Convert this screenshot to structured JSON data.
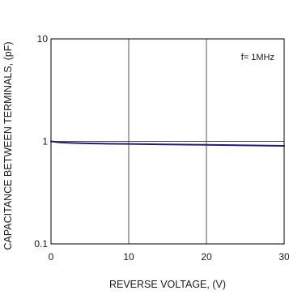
{
  "chart_data": {
    "type": "line",
    "title": "",
    "xlabel": "REVERSE VOLTAGE, (V)",
    "ylabel": "CAPACITANCE BETWEEN TERMINALS, (pF)",
    "xlim": [
      0,
      30
    ],
    "ylim": [
      0.1,
      10
    ],
    "y_scale": "log",
    "x_ticks": [
      0,
      10,
      20,
      30
    ],
    "x_tick_labels": [
      "0",
      "10",
      "20",
      "30"
    ],
    "y_ticks": [
      0.1,
      1,
      10
    ],
    "y_tick_labels": [
      "0.1",
      "1",
      "10"
    ],
    "grid": true,
    "annotation": "f= 1MHz",
    "series": [
      {
        "color": "#1f1f7a",
        "x": [
          0,
          0.5,
          1,
          2,
          3,
          5,
          7,
          10,
          15,
          20,
          25,
          30
        ],
        "y": [
          1.0,
          0.99,
          0.98,
          0.97,
          0.965,
          0.955,
          0.95,
          0.945,
          0.935,
          0.925,
          0.915,
          0.905
        ]
      }
    ]
  }
}
